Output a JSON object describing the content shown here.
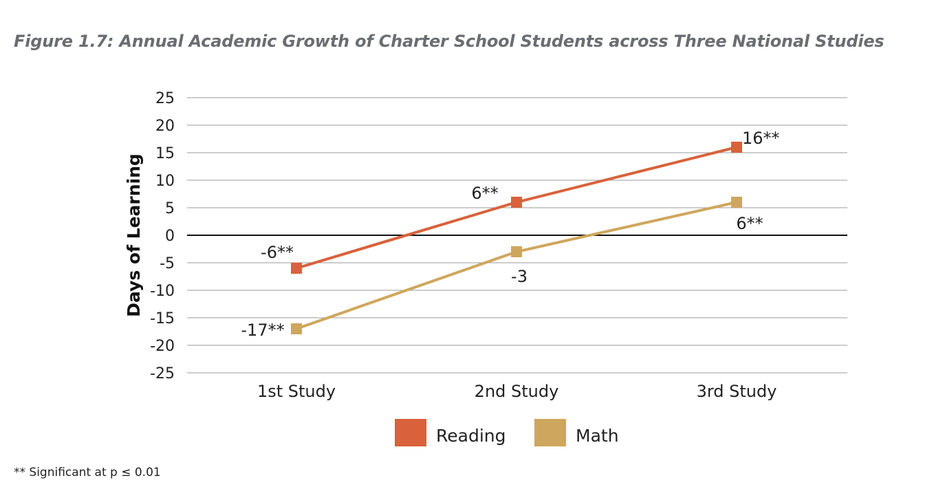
{
  "figure_title": "Figure 1.7: Annual Academic Growth of Charter School Students across Three National Studies",
  "footnote": "** Significant at p ≤ 0.01",
  "colors": {
    "reading": "#d9613b",
    "math": "#cfa65d",
    "grid": "#9a9a9a",
    "zero_line": "#111111"
  },
  "chart_data": {
    "type": "line",
    "title": "Figure 1.7: Annual Academic Growth of Charter School Students across Three National Studies",
    "xlabel": "",
    "ylabel": "Days of Learning",
    "categories": [
      "1st Study",
      "2nd Study",
      "3rd Study"
    ],
    "ylim": [
      -25,
      25
    ],
    "yticks": [
      25,
      20,
      15,
      10,
      5,
      0,
      -5,
      -10,
      -15,
      -20,
      -25
    ],
    "grid": true,
    "legend_position": "bottom",
    "series": [
      {
        "name": "Reading",
        "color": "#d9613b",
        "values": [
          -6,
          6,
          16
        ],
        "labels": [
          "-6**",
          "6**",
          "16**"
        ]
      },
      {
        "name": "Math",
        "color": "#cfa65d",
        "values": [
          -17,
          -3,
          6
        ],
        "labels": [
          "-17**",
          "-3",
          "6**"
        ]
      }
    ]
  }
}
